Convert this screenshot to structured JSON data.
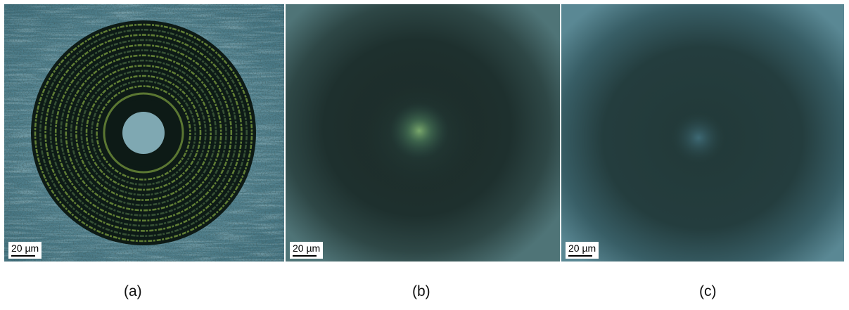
{
  "panels": [
    {
      "id": "a",
      "caption": "(a)",
      "scale_label": "20 µm",
      "description_icon": "fresnel-zone-plate-micrograph"
    },
    {
      "id": "b",
      "caption": "(b)",
      "scale_label": "20 µm",
      "description_icon": "focused-spot-micrograph"
    },
    {
      "id": "c",
      "caption": "(c)",
      "scale_label": "20 µm",
      "description_icon": "defocused-spot-micrograph"
    }
  ],
  "colors": {
    "background_a": "#4f7f8c",
    "ring_dark": "#0d1a16",
    "ring_light": "#6f8f3a",
    "background_b": "#2a3f3e",
    "spot_b": "#6e9e6a",
    "background_c": "#3a6470",
    "spot_c": "#3e6b7a"
  }
}
